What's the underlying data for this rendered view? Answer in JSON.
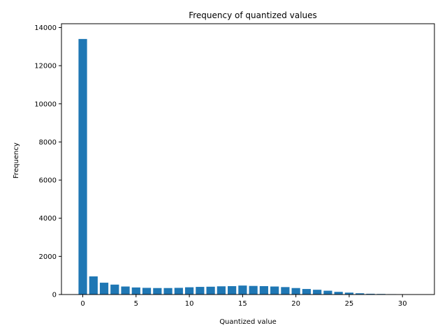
{
  "chart_data": {
    "type": "bar",
    "title": "Frequency of quantized values",
    "xlabel": "Quantized value",
    "ylabel": "Frequency",
    "x": [
      0,
      1,
      2,
      3,
      4,
      5,
      6,
      7,
      8,
      9,
      10,
      11,
      12,
      13,
      14,
      15,
      16,
      17,
      18,
      19,
      20,
      21,
      22,
      23,
      24,
      25,
      26,
      27,
      28,
      29,
      30,
      31
    ],
    "values": [
      13400,
      950,
      620,
      520,
      420,
      370,
      350,
      340,
      340,
      350,
      380,
      400,
      410,
      430,
      440,
      470,
      450,
      440,
      420,
      390,
      340,
      290,
      250,
      200,
      140,
      100,
      65,
      40,
      30,
      20,
      15,
      10
    ],
    "xticks": [
      "0",
      "5",
      "10",
      "15",
      "20",
      "25",
      "30"
    ],
    "yticks": [
      "0",
      "2000",
      "4000",
      "6000",
      "8000",
      "10000",
      "12000",
      "14000"
    ],
    "xlim": [
      -2,
      33
    ],
    "ylim": [
      0,
      14200
    ],
    "grid": false,
    "colors": {
      "bar": "#1f77b4"
    }
  }
}
